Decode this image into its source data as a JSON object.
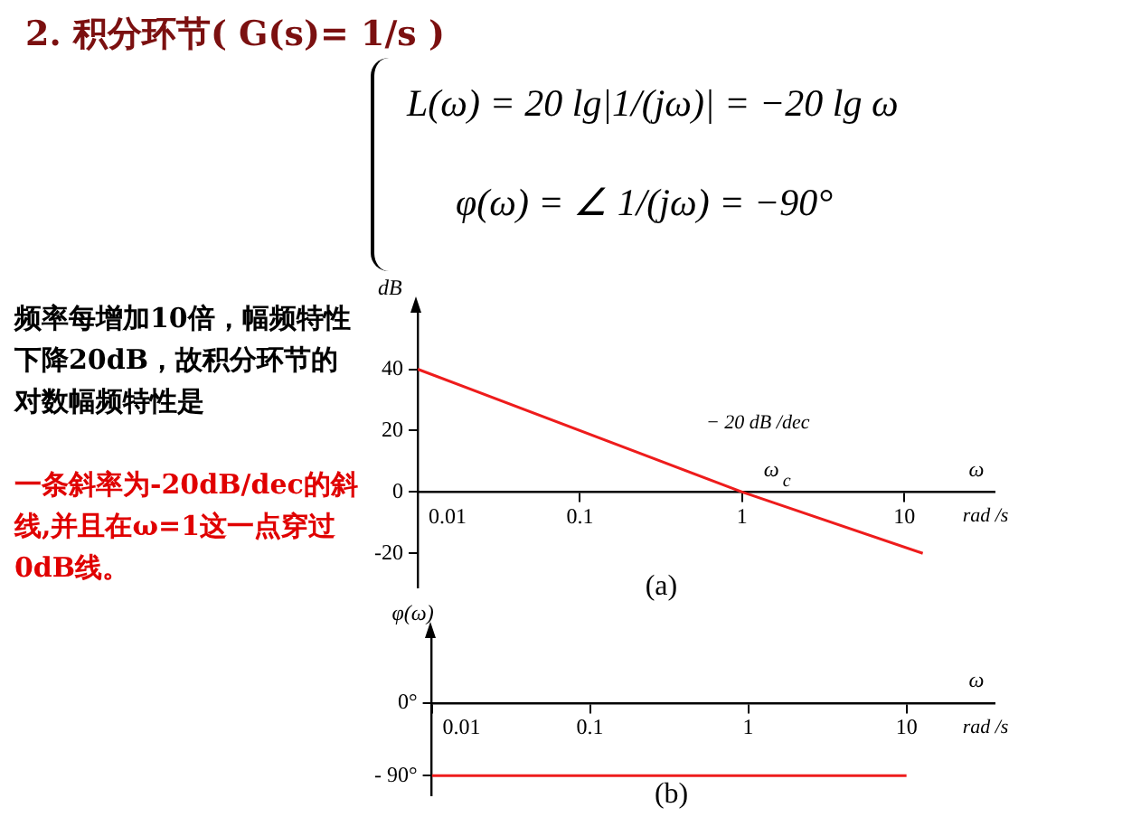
{
  "chart_data": [
    {
      "type": "other",
      "title": "2. 积分环节( G(s)= 1/s )",
      "annotations": [
        "L(ω) = 20 lg|1/(jω)| = −20 lg ω",
        "φ(ω) = ∠ 1/(jω) = −90°",
        "频率每增加10倍，幅频特性下降20dB，故积分环节的对数幅频特性是",
        "一条斜率为-20dB/dec的斜线,并且在ω=1这一点穿过0dB线。"
      ]
    },
    {
      "type": "line",
      "ylabel": "dB",
      "xlabel": "ω",
      "log": "x",
      "grid": false,
      "legend": false,
      "marker": "none",
      "line_style": "solid",
      "x": [
        0.01,
        1,
        13
      ],
      "series": [
        {
          "color": "#ee1c1c",
          "values": [
            40,
            0,
            -20
          ]
        }
      ],
      "xlim": [
        0.01,
        36
      ],
      "xticks": [
        0.01,
        0.1,
        1,
        10
      ],
      "ylim": [
        -31,
        59
      ],
      "yticks": [
        40,
        20,
        0,
        -20
      ],
      "annotations": [
        "rad /s",
        "(a)",
        "− 20 dB /dec",
        "ω$_{c}$"
      ]
    },
    {
      "type": "line",
      "ylabel": "φ(ω)",
      "xlabel": "ω",
      "log": "x",
      "grid": false,
      "legend": false,
      "marker": "none",
      "line_style": "solid",
      "x": [
        0.01,
        10
      ],
      "series": [
        {
          "color": "#ee1c1c",
          "values": [
            -90,
            -90
          ]
        }
      ],
      "xlim": [
        0.01,
        36
      ],
      "xticks": [
        0.01,
        0.1,
        1,
        10
      ],
      "ylim": [
        -114,
        83
      ],
      "yticks": [
        {
          "value": 0,
          "label": "0°"
        },
        {
          "value": -90,
          "label": "- 90°"
        }
      ],
      "annotations": [
        "rad /s",
        "(b)"
      ]
    }
  ]
}
